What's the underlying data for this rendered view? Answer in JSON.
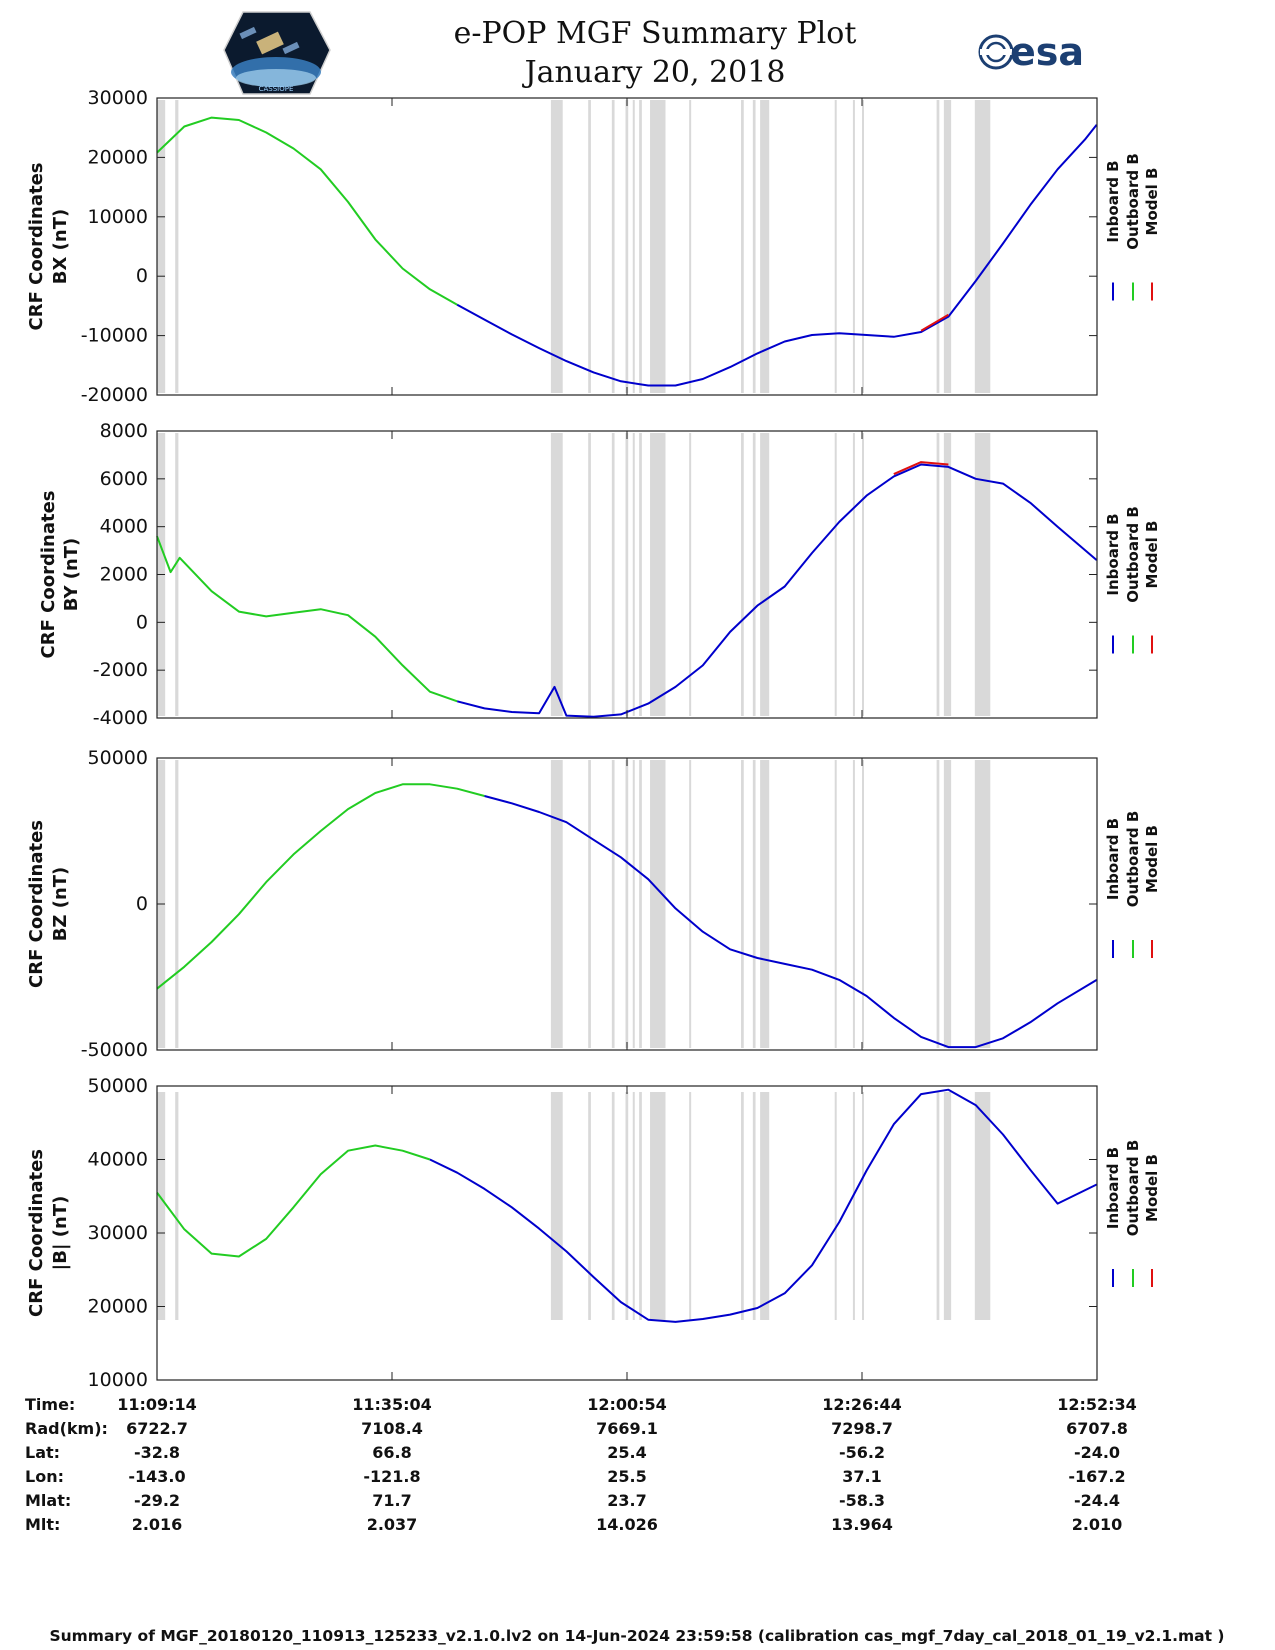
{
  "header": {
    "title": "e-POP MGF Summary Plot",
    "date": "January 20, 2018",
    "esa_logo_text": "esa",
    "cassiope_logo_text": "CASSIOPE"
  },
  "colors": {
    "inboard": "#0000cc",
    "outboard": "#22cc22",
    "model": "#e01010",
    "gap": "#d9d9d9"
  },
  "chart_data": [
    {
      "type": "line",
      "panel": "bx",
      "ylabel_line1": "CRF Coordinates",
      "ylabel_line2": "BX (nT)",
      "ylim": [
        -20000,
        30000
      ],
      "yticks": [
        -20000,
        -10000,
        0,
        10000,
        20000,
        30000
      ],
      "ytick_labels": [
        "-20000",
        "-10000",
        "0",
        "10000",
        "20000",
        "30000"
      ],
      "x_minutes": [
        0,
        3,
        6,
        9,
        12,
        15,
        18,
        21,
        24,
        27,
        30,
        33,
        36,
        39,
        42,
        45,
        48,
        51,
        54,
        57,
        60,
        63,
        66,
        69,
        72,
        75,
        78,
        81,
        84,
        87,
        90,
        93,
        96,
        99,
        102,
        103.3
      ],
      "series": [
        {
          "name": "Outboard B",
          "values": [
            20800,
            25200,
            26700,
            26300,
            24200,
            21500,
            18000,
            12500,
            6200,
            1300,
            -2200,
            -4800,
            null,
            null,
            null,
            null,
            null,
            null,
            null,
            null,
            null,
            null,
            null,
            null,
            null,
            null,
            null,
            null,
            null,
            null,
            null,
            null,
            null,
            null,
            null,
            null
          ]
        },
        {
          "name": "Inboard B",
          "values": [
            null,
            null,
            null,
            null,
            null,
            null,
            null,
            null,
            null,
            null,
            null,
            -4800,
            -7300,
            -9800,
            -12100,
            -14300,
            -16200,
            -17700,
            -18400,
            -18400,
            -17300,
            -15300,
            -13000,
            -11000,
            -9900,
            -9600,
            -9900,
            -10200,
            -9400,
            -6800,
            -800,
            5500,
            12000,
            18000,
            23000,
            25500
          ]
        },
        {
          "name": "Model B",
          "values": [
            null,
            null,
            null,
            null,
            null,
            null,
            null,
            null,
            null,
            null,
            null,
            null,
            null,
            null,
            null,
            null,
            null,
            null,
            null,
            null,
            null,
            null,
            null,
            null,
            null,
            null,
            null,
            null,
            -9200,
            -6500,
            null,
            null,
            null,
            null,
            null,
            null
          ]
        }
      ]
    },
    {
      "type": "line",
      "panel": "by",
      "ylabel_line1": "CRF Coordinates",
      "ylabel_line2": "BY (nT)",
      "ylim": [
        -4000,
        8000
      ],
      "yticks": [
        -4000,
        -2000,
        0,
        2000,
        4000,
        6000,
        8000
      ],
      "ytick_labels": [
        "-4000",
        "-2000",
        "0",
        "2000",
        "4000",
        "6000",
        "8000"
      ],
      "x_minutes": [
        0,
        1.5,
        2.5,
        6,
        9,
        12,
        15,
        18,
        21,
        24,
        27,
        30,
        33,
        36,
        39,
        42,
        43.7,
        45,
        48,
        51,
        54,
        57,
        60,
        63,
        66,
        69,
        72,
        75,
        78,
        81,
        84,
        87,
        90,
        93,
        96,
        99,
        103.3
      ],
      "series": [
        {
          "name": "Outboard B",
          "values": [
            3600,
            2100,
            2700,
            1300,
            450,
            250,
            400,
            550,
            300,
            -600,
            -1800,
            -2900,
            -3300,
            null,
            null,
            null,
            null,
            null,
            null,
            null,
            null,
            null,
            null,
            null,
            null,
            null,
            null,
            null,
            null,
            null,
            null,
            null,
            null,
            null,
            null,
            null,
            null
          ]
        },
        {
          "name": "Inboard B",
          "values": [
            null,
            null,
            null,
            null,
            null,
            null,
            null,
            null,
            null,
            null,
            null,
            null,
            -3300,
            -3600,
            -3750,
            -3800,
            -2700,
            -3900,
            -3950,
            -3850,
            -3400,
            -2700,
            -1800,
            -400,
            700,
            1500,
            2900,
            4200,
            5300,
            6100,
            6600,
            6500,
            6000,
            5800,
            5000,
            4000,
            2600
          ]
        },
        {
          "name": "Model B",
          "values": [
            null,
            null,
            null,
            null,
            null,
            null,
            null,
            null,
            null,
            null,
            null,
            null,
            null,
            null,
            null,
            null,
            null,
            null,
            null,
            null,
            null,
            null,
            null,
            null,
            null,
            null,
            null,
            null,
            null,
            6200,
            6700,
            6600,
            null,
            null,
            null,
            null,
            null
          ]
        }
      ]
    },
    {
      "type": "line",
      "panel": "bz",
      "ylabel_line1": "CRF Coordinates",
      "ylabel_line2": "BZ (nT)",
      "ylim": [
        -50000,
        50000
      ],
      "yticks": [
        -50000,
        0,
        50000
      ],
      "ytick_labels": [
        "-50000",
        "0",
        "50000"
      ],
      "x_minutes": [
        0,
        3,
        6,
        9,
        12,
        15,
        18,
        21,
        24,
        27,
        30,
        33,
        36,
        39,
        42,
        45,
        48,
        51,
        54,
        57,
        60,
        63,
        66,
        69,
        72,
        75,
        78,
        81,
        84,
        87,
        90,
        93,
        96,
        99,
        103.3
      ],
      "series": [
        {
          "name": "Outboard B",
          "values": [
            -29000,
            -21500,
            -13000,
            -3500,
            7500,
            17000,
            25000,
            32500,
            38000,
            41000,
            41000,
            39500,
            37000,
            null,
            null,
            null,
            null,
            null,
            null,
            null,
            null,
            null,
            null,
            null,
            null,
            null,
            null,
            null,
            null,
            null,
            null,
            null,
            null,
            null,
            null
          ]
        },
        {
          "name": "Inboard B",
          "values": [
            null,
            null,
            null,
            null,
            null,
            null,
            null,
            null,
            null,
            null,
            null,
            null,
            37000,
            34500,
            31500,
            28000,
            22000,
            16000,
            8500,
            -1500,
            -9500,
            -15500,
            -18500,
            -20500,
            -22500,
            -26000,
            -31500,
            -39000,
            -45500,
            -49000,
            -49000,
            -46000,
            -40500,
            -34000,
            -26000
          ]
        }
      ]
    },
    {
      "type": "line",
      "panel": "btot",
      "ylabel_line1": "CRF Coordinates",
      "ylabel_line2": "|B| (nT)",
      "ylim": [
        10000,
        50000
      ],
      "yticks": [
        10000,
        20000,
        30000,
        40000,
        50000
      ],
      "ytick_labels": [
        "10000",
        "20000",
        "30000",
        "40000",
        "50000"
      ],
      "x_minutes": [
        0,
        3,
        6,
        9,
        12,
        15,
        18,
        21,
        24,
        27,
        30,
        33,
        36,
        39,
        42,
        45,
        48,
        51,
        54,
        57,
        60,
        63,
        66,
        69,
        72,
        75,
        78,
        81,
        84,
        87,
        90,
        93,
        96,
        99,
        103.3
      ],
      "series": [
        {
          "name": "Outboard B",
          "values": [
            35500,
            30500,
            27200,
            26800,
            29200,
            33500,
            38000,
            41200,
            41900,
            41200,
            40000,
            null,
            null,
            null,
            null,
            null,
            null,
            null,
            null,
            null,
            null,
            null,
            null,
            null,
            null,
            null,
            null,
            null,
            null,
            null,
            null,
            null,
            null,
            null,
            null
          ]
        },
        {
          "name": "Inboard B",
          "values": [
            null,
            null,
            null,
            null,
            null,
            null,
            null,
            null,
            null,
            null,
            40000,
            38200,
            36000,
            33500,
            30600,
            27500,
            24000,
            20600,
            18200,
            17900,
            18300,
            18900,
            19800,
            21800,
            25600,
            31500,
            38500,
            44800,
            48900,
            49500,
            47400,
            43400,
            38600,
            34000,
            36600
          ]
        }
      ]
    }
  ],
  "gaps": {
    "description_units": "minutes after 11:09:14",
    "intervals": [
      [
        0,
        0.9
      ],
      [
        2.0,
        2.35
      ],
      [
        43.3,
        44.6
      ],
      [
        47.4,
        47.7
      ],
      [
        50.0,
        50.3
      ],
      [
        51.5,
        51.8
      ],
      [
        52.3,
        52.5
      ],
      [
        53.0,
        53.3
      ],
      [
        54.2,
        55.9
      ],
      [
        58.5,
        58.7
      ],
      [
        64.2,
        64.5
      ],
      [
        65.5,
        65.8
      ],
      [
        66.3,
        67.3
      ],
      [
        74.5,
        74.7
      ],
      [
        76.5,
        76.7
      ],
      [
        77.5,
        77.7
      ],
      [
        85.7,
        86.0
      ],
      [
        86.5,
        87.3
      ],
      [
        89.9,
        91.6
      ]
    ]
  },
  "legend": {
    "labels": [
      "Inboard B",
      "Outboard B",
      "Model B"
    ]
  },
  "time_axis": {
    "tick_minutes": [
      0,
      25.833,
      51.667,
      77.5,
      103.333
    ]
  },
  "info_table": {
    "row_labels": [
      "Time:",
      "Rad(km):",
      "Lat:",
      "Lon:",
      "Mlat:",
      "Mlt:"
    ],
    "columns": [
      [
        "11:09:14",
        "6722.7",
        "-32.8",
        "-143.0",
        "-29.2",
        "2.016"
      ],
      [
        "11:35:04",
        "7108.4",
        "66.8",
        "-121.8",
        "71.7",
        "2.037"
      ],
      [
        "12:00:54",
        "7669.1",
        "25.4",
        "25.5",
        "23.7",
        "14.026"
      ],
      [
        "12:26:44",
        "7298.7",
        "-56.2",
        "37.1",
        "-58.3",
        "13.964"
      ],
      [
        "12:52:34",
        "6707.8",
        "-24.0",
        "-167.2",
        "-24.4",
        "2.010"
      ]
    ]
  },
  "footer": {
    "text": "Summary of MGF_20180120_110913_125233_v2.1.0.lv2 on 14-Jun-2024 23:59:58 (calibration cas_mgf_7day_cal_2018_01_19_v2.1.mat )"
  }
}
